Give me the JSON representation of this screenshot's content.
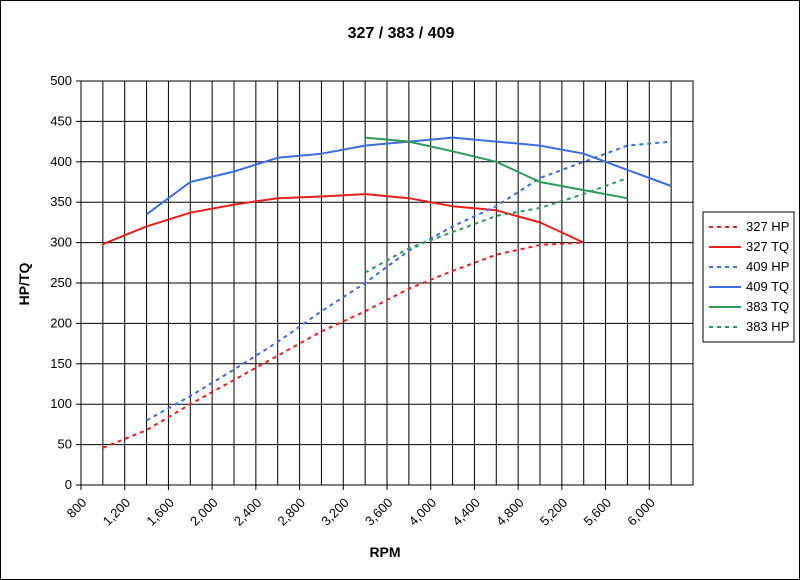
{
  "chart_data": {
    "type": "line",
    "title": "327 / 383 / 409",
    "xlabel": "RPM",
    "ylabel": "HP/TQ",
    "xlim": [
      800,
      6400
    ],
    "ylim": [
      0,
      500
    ],
    "x_ticks": [
      800,
      1200,
      1600,
      2000,
      2400,
      2800,
      3200,
      3600,
      4000,
      4400,
      4800,
      5200,
      5600,
      6000
    ],
    "x_tick_labels": [
      "800",
      "1,200",
      "1,600",
      "2,000",
      "2,400",
      "2,800",
      "3,200",
      "3,600",
      "4,000",
      "4,400",
      "4,800",
      "5,200",
      "5,600",
      "6,000"
    ],
    "y_ticks": [
      0,
      50,
      100,
      150,
      200,
      250,
      300,
      350,
      400,
      450,
      500
    ],
    "y_tick_labels": [
      "0",
      "50",
      "100",
      "150",
      "200",
      "250",
      "300",
      "350",
      "400",
      "450",
      "500"
    ],
    "grid": true,
    "legend_position": "right",
    "series": [
      {
        "name": "327 HP",
        "color": "#e8201c",
        "dash": true,
        "points": [
          [
            1000,
            46
          ],
          [
            1400,
            68
          ],
          [
            1800,
            100
          ],
          [
            2200,
            130
          ],
          [
            2600,
            160
          ],
          [
            3000,
            190
          ],
          [
            3400,
            215
          ],
          [
            3800,
            243
          ],
          [
            4200,
            265
          ],
          [
            4600,
            285
          ],
          [
            5000,
            297
          ],
          [
            5400,
            300
          ]
        ]
      },
      {
        "name": "327 TQ",
        "color": "#e8201c",
        "dash": false,
        "points": [
          [
            1000,
            298
          ],
          [
            1400,
            320
          ],
          [
            1800,
            337
          ],
          [
            2200,
            347
          ],
          [
            2600,
            355
          ],
          [
            3000,
            357
          ],
          [
            3400,
            360
          ],
          [
            3800,
            355
          ],
          [
            4200,
            345
          ],
          [
            4600,
            340
          ],
          [
            5000,
            325
          ],
          [
            5400,
            300
          ]
        ]
      },
      {
        "name": "409 HP",
        "color": "#3c6ee0",
        "dash": true,
        "points": [
          [
            1400,
            80
          ],
          [
            1800,
            110
          ],
          [
            2200,
            143
          ],
          [
            2600,
            177
          ],
          [
            3000,
            215
          ],
          [
            3400,
            250
          ],
          [
            3800,
            290
          ],
          [
            4200,
            320
          ],
          [
            4600,
            345
          ],
          [
            5000,
            380
          ],
          [
            5400,
            400
          ],
          [
            5800,
            420
          ],
          [
            6200,
            425
          ]
        ]
      },
      {
        "name": "409 TQ",
        "color": "#3c6ee0",
        "dash": false,
        "points": [
          [
            1400,
            335
          ],
          [
            1800,
            375
          ],
          [
            2200,
            388
          ],
          [
            2600,
            405
          ],
          [
            3000,
            410
          ],
          [
            3400,
            420
          ],
          [
            3800,
            425
          ],
          [
            4200,
            430
          ],
          [
            4600,
            425
          ],
          [
            5000,
            420
          ],
          [
            5400,
            410
          ],
          [
            5800,
            390
          ],
          [
            6200,
            370
          ]
        ]
      },
      {
        "name": "383 TQ",
        "color": "#2e9a5a",
        "dash": false,
        "points": [
          [
            3400,
            430
          ],
          [
            3800,
            425
          ],
          [
            4200,
            413
          ],
          [
            4600,
            400
          ],
          [
            5000,
            375
          ],
          [
            5400,
            365
          ],
          [
            5800,
            355
          ]
        ]
      },
      {
        "name": "383 HP",
        "color": "#2e9a5a",
        "dash": true,
        "points": [
          [
            3400,
            263
          ],
          [
            3800,
            293
          ],
          [
            4200,
            313
          ],
          [
            4600,
            333
          ],
          [
            5000,
            343
          ],
          [
            5400,
            360
          ],
          [
            5800,
            380
          ]
        ]
      }
    ]
  }
}
